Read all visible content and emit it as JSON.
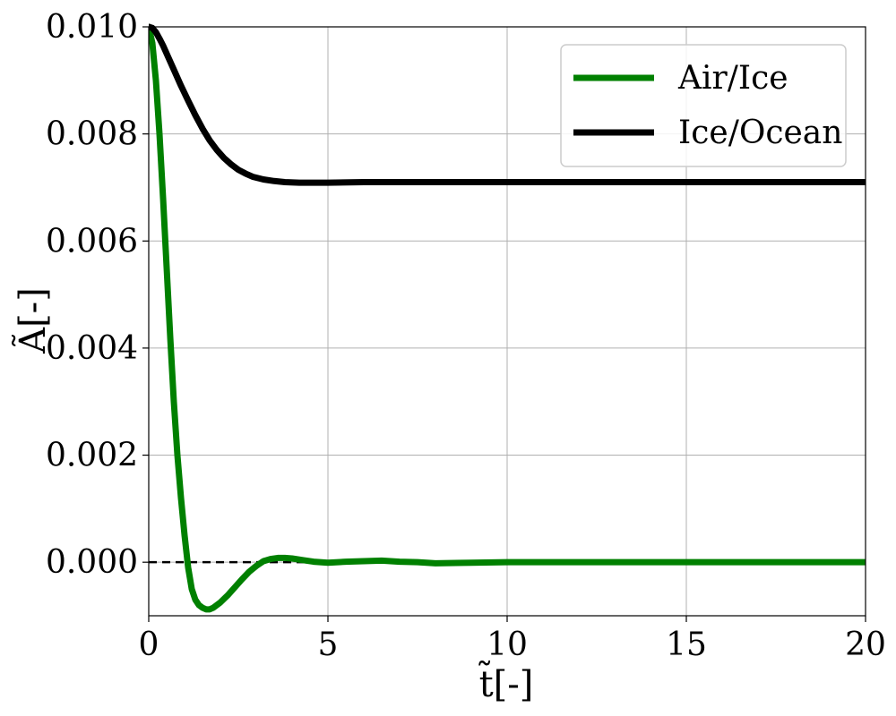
{
  "chart_data": {
    "type": "line",
    "xlabel": "t̃[-]",
    "ylabel": "Ã[-]",
    "xlim": [
      0,
      20
    ],
    "ylim": [
      -0.001,
      0.01
    ],
    "x_ticks": [
      0,
      5,
      10,
      15,
      20
    ],
    "x_tick_labels": [
      "0",
      "5",
      "10",
      "15",
      "20"
    ],
    "y_ticks": [
      0.0,
      0.002,
      0.004,
      0.006,
      0.008,
      0.01
    ],
    "y_tick_labels": [
      "0.000",
      "0.002",
      "0.004",
      "0.006",
      "0.008",
      "0.010"
    ],
    "grid": true,
    "legend_position": "top-right",
    "reference_line": {
      "y": 0,
      "style": "dashed",
      "color": "#000000"
    },
    "series": [
      {
        "name": "Air/Ice",
        "color": "#008000",
        "x": [
          0,
          0.1,
          0.2,
          0.3,
          0.4,
          0.5,
          0.6,
          0.7,
          0.8,
          0.9,
          1.0,
          1.1,
          1.2,
          1.3,
          1.4,
          1.5,
          1.6,
          1.7,
          1.8,
          1.9,
          2.0,
          2.2,
          2.4,
          2.6,
          2.8,
          3.0,
          3.2,
          3.4,
          3.6,
          3.8,
          4.0,
          4.3,
          4.6,
          5.0,
          5.5,
          6.0,
          6.5,
          7.0,
          7.5,
          8.0,
          9.0,
          10.0,
          12.0,
          14.0,
          16.0,
          18.0,
          20.0
        ],
        "y": [
          0.01,
          0.0097,
          0.009,
          0.008,
          0.0068,
          0.0055,
          0.0042,
          0.003,
          0.002,
          0.0012,
          0.0005,
          -0.0001,
          -0.0005,
          -0.0007,
          -0.0008,
          -0.00085,
          -0.00088,
          -0.00088,
          -0.00085,
          -0.0008,
          -0.00075,
          -0.00062,
          -0.00047,
          -0.00032,
          -0.00018,
          -7e-05,
          2e-05,
          6e-05,
          8e-05,
          8e-05,
          7e-05,
          4e-05,
          1e-05,
          -1e-05,
          1e-05,
          2e-05,
          3e-05,
          1e-05,
          0.0,
          -2e-05,
          -1e-05,
          0.0,
          0.0,
          0.0,
          0.0,
          0.0,
          0.0
        ]
      },
      {
        "name": "Ice/Ocean",
        "color": "#000000",
        "x": [
          0,
          0.1,
          0.2,
          0.3,
          0.4,
          0.5,
          0.7,
          0.9,
          1.1,
          1.3,
          1.5,
          1.7,
          1.9,
          2.1,
          2.3,
          2.5,
          2.7,
          2.9,
          3.2,
          3.5,
          3.8,
          4.2,
          4.6,
          5.0,
          6.0,
          7.0,
          8.0,
          10.0,
          12.0,
          15.0,
          18.0,
          20.0
        ],
        "y": [
          0.01,
          0.00998,
          0.0099,
          0.00978,
          0.00965,
          0.0095,
          0.0092,
          0.0089,
          0.00862,
          0.00835,
          0.0081,
          0.00788,
          0.0077,
          0.00755,
          0.00743,
          0.00733,
          0.00726,
          0.0072,
          0.00715,
          0.00712,
          0.0071,
          0.00709,
          0.00709,
          0.00709,
          0.0071,
          0.0071,
          0.0071,
          0.0071,
          0.0071,
          0.0071,
          0.0071,
          0.0071
        ]
      }
    ]
  }
}
